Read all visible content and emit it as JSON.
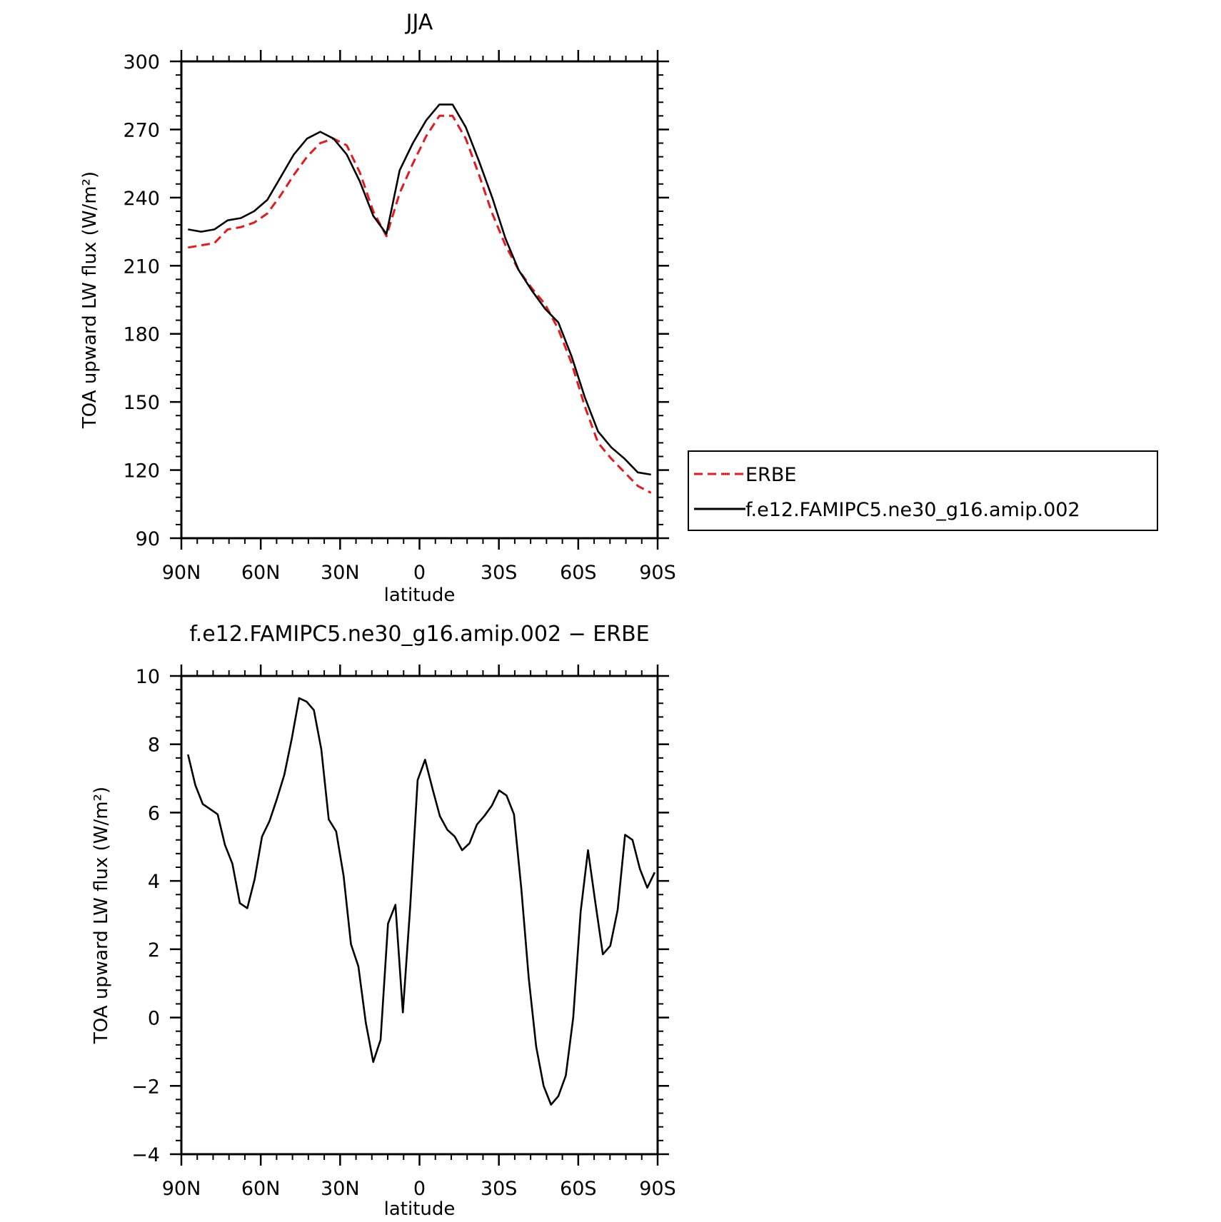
{
  "chart_data": [
    {
      "type": "line",
      "title": "JJA",
      "xlabel": "latitude",
      "ylabel": "TOA upward LW flux (W/m²)",
      "xlim": [
        90,
        -90
      ],
      "ylim": [
        90,
        300
      ],
      "xticks": [
        90,
        60,
        30,
        0,
        -30,
        -60,
        -90
      ],
      "xtick_labels": [
        "90N",
        "60N",
        "30N",
        "0",
        "30S",
        "60S",
        "90S"
      ],
      "yticks": [
        90,
        120,
        150,
        180,
        210,
        240,
        270,
        300
      ],
      "ytick_labels": [
        "90",
        "120",
        "150",
        "180",
        "210",
        "240",
        "270",
        "300"
      ],
      "grid": false,
      "legend": "right",
      "x": [
        87.5,
        82.5,
        77.5,
        72.5,
        67.5,
        62.5,
        57.5,
        52.5,
        47.5,
        42.5,
        37.5,
        32.5,
        27.5,
        22.5,
        17.5,
        12.5,
        7.5,
        2.5,
        -2.5,
        -7.5,
        -12.5,
        -17.5,
        -22.5,
        -27.5,
        -32.5,
        -37.5,
        -42.5,
        -47.5,
        -52.5,
        -57.5,
        -62.5,
        -67.5,
        -72.5,
        -77.5,
        -82.5,
        -87.5
      ],
      "series": [
        {
          "name": "ERBE",
          "color": "#e41a1c",
          "dash": "dashed",
          "values": [
            218,
            219,
            220,
            226,
            227,
            229,
            233,
            241,
            250,
            258,
            264,
            266,
            263,
            251,
            234,
            223,
            242,
            255,
            267,
            276,
            276,
            266,
            250,
            233,
            219,
            208,
            200,
            193,
            182,
            167,
            148,
            132,
            125,
            119,
            113,
            110
          ]
        },
        {
          "name": "f.e12.FAMIPC5.ne30_g16.amip.002",
          "color": "#000000",
          "dash": "solid",
          "values": [
            226,
            225,
            226,
            230,
            231,
            234,
            239,
            249,
            259,
            266,
            269,
            266,
            259,
            247,
            232,
            224,
            252,
            264,
            274,
            281,
            281,
            271,
            256,
            240,
            222,
            208,
            199,
            191,
            185,
            170,
            152,
            137,
            130,
            125,
            119,
            118
          ]
        }
      ]
    },
    {
      "type": "line",
      "title": "f.e12.FAMIPC5.ne30_g16.amip.002 − ERBE",
      "xlabel": "latitude",
      "ylabel": "TOA upward LW flux (W/m²)",
      "xlim": [
        90,
        -90
      ],
      "ylim": [
        -4,
        10
      ],
      "xticks": [
        90,
        60,
        30,
        0,
        -30,
        -60,
        -90
      ],
      "xtick_labels": [
        "90N",
        "60N",
        "30N",
        "0",
        "30S",
        "60S",
        "90S"
      ],
      "yticks": [
        -4,
        -2,
        0,
        2,
        4,
        6,
        8,
        10
      ],
      "ytick_labels": [
        "−4",
        "−2",
        "0",
        "2",
        "4",
        "6",
        "8",
        "10"
      ],
      "grid": false,
      "x": [
        87.5,
        84.7,
        81.9,
        79.1,
        76.3,
        73.5,
        70.7,
        67.9,
        65.1,
        62.3,
        59.5,
        56.7,
        53.9,
        51.1,
        48.3,
        45.5,
        42.7,
        39.9,
        37.1,
        34.3,
        31.5,
        28.7,
        25.9,
        23.1,
        20.3,
        17.5,
        14.7,
        11.9,
        9.1,
        6.3,
        3.5,
        0.7,
        -2.1,
        -4.9,
        -7.7,
        -10.5,
        -13.3,
        -16.1,
        -18.9,
        -21.7,
        -24.5,
        -27.3,
        -30.1,
        -32.9,
        -35.7,
        -38.5,
        -41.3,
        -44.1,
        -46.9,
        -49.7,
        -52.5,
        -55.3,
        -58.1,
        -60.9,
        -63.7,
        -66.5,
        -69.3,
        -72.1,
        -74.9,
        -77.7,
        -80.5,
        -83.3,
        -86.1,
        -88.9
      ],
      "series": [
        {
          "name": "",
          "color": "#000000",
          "dash": "solid",
          "values": [
            7.7,
            6.8,
            6.25,
            6.1,
            5.95,
            5.05,
            4.5,
            3.35,
            3.2,
            4.05,
            5.3,
            5.75,
            6.4,
            7.1,
            8.15,
            9.35,
            9.25,
            9.0,
            7.85,
            5.8,
            5.45,
            4.15,
            2.15,
            1.5,
            -0.15,
            -1.3,
            -0.65,
            2.75,
            3.3,
            0.15,
            3.25,
            6.95,
            7.55,
            6.7,
            5.9,
            5.5,
            5.3,
            4.9,
            5.1,
            5.65,
            5.9,
            6.2,
            6.65,
            6.5,
            5.95,
            3.75,
            1.15,
            -0.85,
            -2.0,
            -2.55,
            -2.3,
            -1.7,
            0.0,
            3.1,
            4.9,
            3.35,
            1.85,
            2.1,
            3.15,
            5.35,
            5.2,
            4.35,
            3.8,
            4.25
          ]
        }
      ]
    }
  ]
}
